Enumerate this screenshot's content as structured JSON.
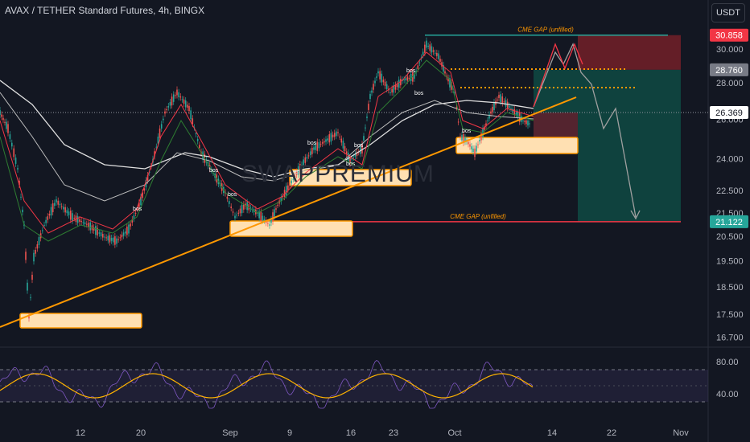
{
  "header": {
    "title": "AVAX / TETHER Standard Futures, 4h, BINGX",
    "currency_button": "USDT"
  },
  "watermark": "SWAPPREMIUM",
  "colors": {
    "background": "#131722",
    "trendline": "#ff9800",
    "zone_fill": "#ffe0b2",
    "zone_border": "#ff9800",
    "cme_gap_top": "#26a69a",
    "cme_gap_bottom": "#f23645",
    "stop_zone": "#80212a",
    "target_zone": "#0f4a43",
    "rsi": "#7e57c2",
    "rsi_ma": "#ffb300",
    "ema_fast": "#26a69a",
    "ema_mid": "#f23645",
    "ma_slow": "#e0e0e0"
  },
  "chart_data": {
    "type": "candlestick",
    "x_tick_labels": [
      "12",
      "20",
      "Sep",
      "9",
      "16",
      "23",
      "Oct",
      "14",
      "22",
      "Nov"
    ],
    "y_tick_labels": [
      "30.000",
      "28.000",
      "26.000",
      "24.000",
      "22.500",
      "21.500",
      "20.500",
      "19.500",
      "18.500",
      "17.500",
      "16.700"
    ],
    "y_scale": "log",
    "ylim": [
      16.7,
      31.0
    ],
    "price_labels": [
      {
        "text": "30.858",
        "value": 30.858,
        "color": "#f23645"
      },
      {
        "text": "28.760",
        "value": 28.76,
        "color": "#787b86"
      },
      {
        "text": "26.369",
        "value": 26.369,
        "color": "#ffffff"
      },
      {
        "text": "21.122",
        "value": 21.122,
        "color": "#26a69a"
      }
    ],
    "annotations": [
      {
        "text": "CME GAP (unfilled)",
        "price": 30.858
      },
      {
        "text": "CME GAP (unfilled)",
        "price": 21.122
      }
    ],
    "bos_labels": [
      "bos",
      "bos",
      "bos",
      "bos",
      "bos",
      "bos",
      "bos",
      "bos",
      "bos"
    ],
    "rsi": {
      "tick_labels": [
        "80.00",
        "40.00"
      ],
      "ylim": [
        20,
        90
      ]
    }
  }
}
